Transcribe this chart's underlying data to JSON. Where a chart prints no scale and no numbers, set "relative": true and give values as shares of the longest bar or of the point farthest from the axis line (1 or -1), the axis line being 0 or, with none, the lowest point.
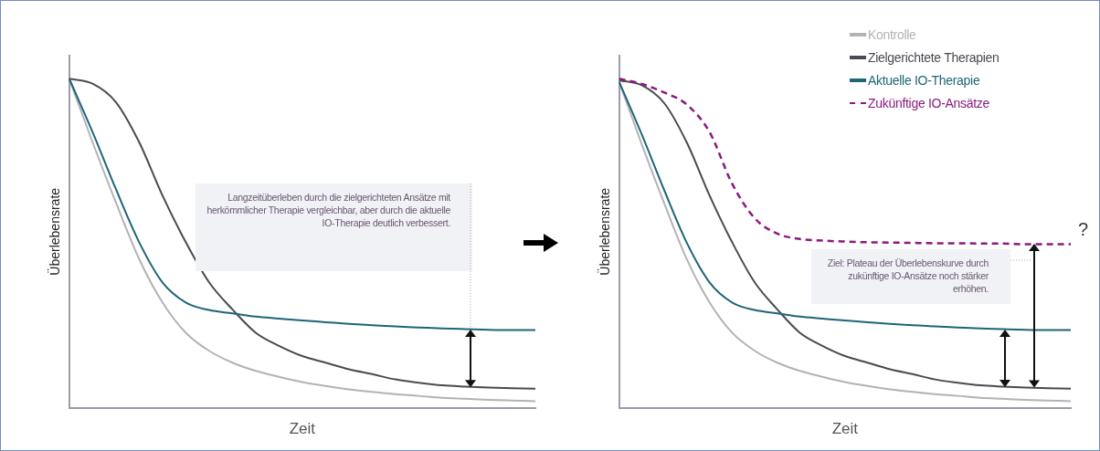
{
  "chart_data": [
    {
      "type": "line",
      "xlabel": "Zeit",
      "ylabel": "Überlebensrate",
      "relative": true,
      "tick_labels": false,
      "legend": false,
      "marker": "none",
      "grid": false,
      "categories": [
        null,
        null,
        null,
        null,
        null,
        null,
        null,
        null,
        null,
        null,
        null,
        null,
        null,
        null,
        null,
        null,
        null,
        null,
        null,
        null,
        null
      ],
      "series": [
        {
          "color": "#b3b3b7",
          "values": [
            1.0,
            0.807,
            0.624,
            0.452,
            0.32,
            0.228,
            0.173,
            0.137,
            0.112,
            0.094,
            0.078,
            0.066,
            0.056,
            0.048,
            0.041,
            0.036,
            0.03,
            0.027,
            0.024,
            0.022,
            0.02
          ]
        },
        {
          "color": "#4a4a52",
          "values": [
            1.0,
            0.985,
            0.929,
            0.807,
            0.645,
            0.503,
            0.381,
            0.299,
            0.228,
            0.188,
            0.157,
            0.137,
            0.117,
            0.102,
            0.086,
            0.076,
            0.068,
            0.064,
            0.061,
            0.059,
            0.058
          ]
        },
        {
          "color": "#1f6478",
          "values": [
            1.0,
            0.838,
            0.665,
            0.503,
            0.381,
            0.32,
            0.297,
            0.287,
            0.277,
            0.271,
            0.265,
            0.26,
            0.255,
            0.251,
            0.247,
            0.244,
            0.241,
            0.239,
            0.237,
            0.236,
            0.236
          ]
        }
      ],
      "annotations": [
        "Langzeitüberleben durch die zielgerichteten Ansätze mit herkömmlicher Therapie vergleichbar, aber durch die aktuelle IO-Therapie deutlich verbessert."
      ]
    },
    {
      "type": "line",
      "xlabel": "Zeit",
      "ylabel": "Überlebensrate",
      "relative": true,
      "tick_labels": false,
      "legend": "top right",
      "marker": "none",
      "grid": false,
      "categories": [
        null,
        null,
        null,
        null,
        null,
        null,
        null,
        null,
        null,
        null,
        null,
        null,
        null,
        null,
        null,
        null,
        null,
        null,
        null,
        null,
        null
      ],
      "series": [
        {
          "name": "Kontrolle",
          "color": "#b3b3b7",
          "values": [
            0.99,
            0.8,
            0.62,
            0.45,
            0.32,
            0.228,
            0.173,
            0.137,
            0.112,
            0.094,
            0.078,
            0.066,
            0.056,
            0.048,
            0.041,
            0.036,
            0.03,
            0.027,
            0.024,
            0.022,
            0.02
          ]
        },
        {
          "name": "Zielgerichtete Therapien",
          "color": "#4a4a52",
          "values": [
            0.995,
            0.98,
            0.925,
            0.805,
            0.645,
            0.503,
            0.381,
            0.299,
            0.228,
            0.188,
            0.157,
            0.137,
            0.117,
            0.102,
            0.086,
            0.076,
            0.068,
            0.064,
            0.061,
            0.059,
            0.058
          ]
        },
        {
          "name": "Aktuelle IO-Therapie",
          "color": "#1f6478",
          "values": [
            0.99,
            0.83,
            0.66,
            0.5,
            0.381,
            0.32,
            0.297,
            0.287,
            0.277,
            0.271,
            0.265,
            0.26,
            0.255,
            0.251,
            0.247,
            0.244,
            0.241,
            0.239,
            0.237,
            0.236,
            0.236
          ]
        },
        {
          "name": "Zukünftige IO-Ansätze",
          "color": "#8b1a7f",
          "line_style": "dashed",
          "values": [
            1.0,
            0.984,
            0.958,
            0.921,
            0.838,
            0.681,
            0.576,
            0.529,
            0.513,
            0.508,
            0.505,
            0.503,
            0.502,
            0.501,
            0.5,
            0.5,
            0.499,
            0.499,
            0.497,
            0.497,
            0.497
          ]
        }
      ],
      "annotations": [
        "Ziel: Plateau der Überlebenskurve durch zukünftige IO-Ansätze noch stärker erhöhen.",
        "?"
      ]
    }
  ]
}
